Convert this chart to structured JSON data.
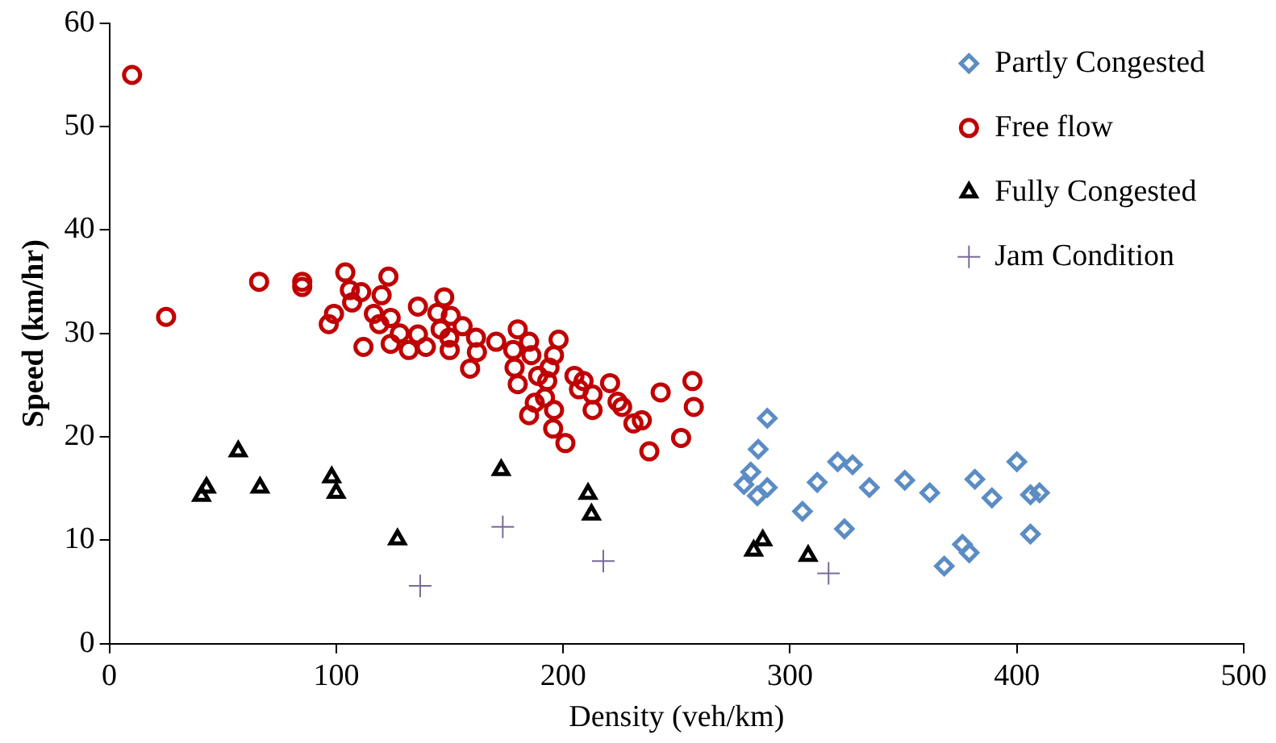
{
  "chart_data": {
    "type": "scatter",
    "xlabel": "Density (veh/km)",
    "ylabel": "Speed (km/hr)",
    "xlim": [
      0,
      500
    ],
    "ylim": [
      0,
      60
    ],
    "xticks": [
      0,
      100,
      200,
      300,
      400,
      500
    ],
    "yticks": [
      0,
      10,
      20,
      30,
      40,
      50,
      60
    ],
    "grid": false,
    "legend": "top right",
    "series": [
      {
        "name": "Partly Congested",
        "color": "#5b8cc4",
        "marker": "diamond",
        "x": [
          290,
          286,
          282.7,
          279.7,
          285.6,
          290,
          305.5,
          312,
          321,
          327.6,
          335,
          324,
          350.6,
          361.6,
          368,
          376,
          379,
          381.5,
          389,
          400,
          406,
          410,
          406
        ],
        "values": [
          21.8,
          18.8,
          16.6,
          15.4,
          14.3,
          15.1,
          12.8,
          15.6,
          17.6,
          17.3,
          15.1,
          11.1,
          15.8,
          14.6,
          7.5,
          9.6,
          8.8,
          15.9,
          14.1,
          17.6,
          14.4,
          14.6,
          10.6
        ]
      },
      {
        "name": "Free flow",
        "color": "#c00000",
        "marker": "circle",
        "x": [
          10,
          25,
          66,
          85,
          85,
          96.7,
          99,
          104,
          106,
          107,
          111,
          112,
          116.6,
          120,
          123,
          119,
          124,
          124,
          128,
          132,
          136,
          136,
          139.5,
          144.6,
          146,
          147.6,
          149.8,
          150.5,
          150,
          155.7,
          159,
          162,
          161.6,
          170.5,
          178,
          180,
          178.6,
          185,
          186,
          180,
          189,
          193,
          198,
          196,
          194,
          192,
          185,
          196,
          195.6,
          201,
          187.5,
          205,
          209,
          207,
          213,
          213,
          220.7,
          224,
          226,
          231,
          234.7,
          238,
          243,
          257,
          257.6,
          252
        ],
        "values": [
          55,
          31.6,
          35,
          34.5,
          35,
          30.9,
          31.9,
          35.9,
          34.2,
          33,
          34,
          28.7,
          31.9,
          33.7,
          35.5,
          30.9,
          31.5,
          29,
          30,
          28.4,
          32.6,
          29.9,
          28.7,
          32,
          30.4,
          33.5,
          29.6,
          31.7,
          28.4,
          30.7,
          26.6,
          28.2,
          29.6,
          29.2,
          28.4,
          30.4,
          26.7,
          29.2,
          27.9,
          25.1,
          25.9,
          25.4,
          29.4,
          27.9,
          26.7,
          23.8,
          22.1,
          22.6,
          20.8,
          19.4,
          23.3,
          25.9,
          25.4,
          24.6,
          24.1,
          22.6,
          25.2,
          23.4,
          22.9,
          21.3,
          21.6,
          18.6,
          24.3,
          25.4,
          22.9,
          19.9
        ]
      },
      {
        "name": "Fully Congested",
        "color": "#000000",
        "marker": "triangle",
        "x": [
          40.6,
          42.8,
          56.8,
          66.4,
          98,
          100,
          127,
          172.7,
          211,
          212.5,
          288,
          284,
          308
        ],
        "values": [
          14.3,
          15.1,
          18.6,
          15.1,
          16.1,
          14.6,
          10.1,
          16.8,
          14.5,
          12.5,
          10,
          9,
          8.5
        ]
      },
      {
        "name": "Jam Condition",
        "color": "#7a6a9a",
        "marker": "cross",
        "x": [
          137,
          173.4,
          217.7,
          317
        ],
        "values": [
          5.6,
          11.3,
          8,
          6.8
        ]
      }
    ]
  }
}
